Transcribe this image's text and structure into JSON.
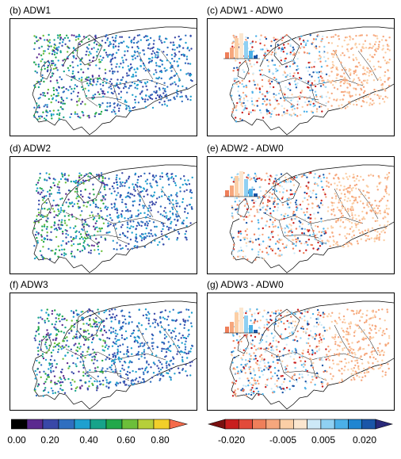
{
  "panels": [
    {
      "label": "(b) ADW1",
      "kind": "abs"
    },
    {
      "label": "(c) ADW1 - ADW0",
      "kind": "diff"
    },
    {
      "label": "(d) ADW2",
      "kind": "abs"
    },
    {
      "label": "(e) ADW2 - ADW0",
      "kind": "diff"
    },
    {
      "label": "(f) ADW3",
      "kind": "abs"
    },
    {
      "label": "(g) ADW3 - ADW0",
      "kind": "diff"
    }
  ],
  "colorbar_left": {
    "colors": [
      "#000000",
      "#5b2a8f",
      "#3948a8",
      "#2f6fc0",
      "#1fa0cf",
      "#17a38a",
      "#22a84a",
      "#6cbf3a",
      "#b6cf3a",
      "#f2cf2a"
    ],
    "arrow_color": "#f46a4a",
    "ticks": [
      "0.00",
      "0.20",
      "0.40",
      "0.60",
      "0.80"
    ]
  },
  "colorbar_right": {
    "colors": [
      "#c81e1e",
      "#e24a3a",
      "#ef7f5a",
      "#f6a77d",
      "#fbcfa6",
      "#fbe6cf",
      "#cde9f7",
      "#8fd0f2",
      "#4bb0e8",
      "#1f85d1",
      "#1a56a8"
    ],
    "low_arrow_color": "#7a1010",
    "high_arrow_color": "#2a2a7a",
    "ticks": [
      "-0.020",
      "-0.005",
      "0.005",
      "0.020"
    ]
  }
}
